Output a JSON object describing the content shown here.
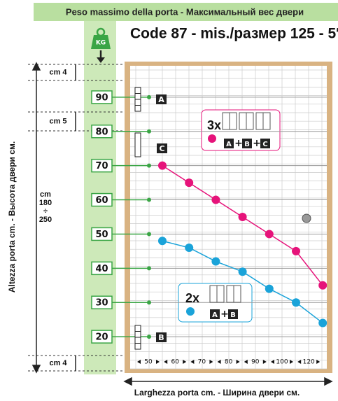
{
  "chart_data": {
    "type": "line",
    "subtitle": "Peso massimo della porta  -  Максимальный вес двери",
    "title": "Code 87 - mis./размер 125 - 5″",
    "icon": "KG",
    "ylabel": "Altezza porta cm.  -  Высота двери см.",
    "xlabel": "Larghezza porta cm.  -  Ширина двери см.",
    "height_label": [
      "cm",
      "180",
      "÷",
      "250"
    ],
    "dimension_labels": [
      "cm 4",
      "cm 5",
      "cm 4"
    ],
    "hinge_labels": [
      "A",
      "C",
      "B"
    ],
    "categories": [
      "50",
      "60",
      "70",
      "80",
      "90",
      "100",
      "120"
    ],
    "ylim": [
      10,
      100
    ],
    "yticks": [
      20,
      30,
      40,
      50,
      60,
      70,
      80,
      90
    ],
    "grid": true,
    "series": [
      {
        "name": "3x",
        "color": "#e6137a",
        "values": [
          70,
          65,
          60,
          55,
          50,
          45,
          35
        ],
        "hinges": [
          "A",
          "+",
          "B",
          "+",
          "C"
        ]
      },
      {
        "name": "2x",
        "color": "#1aa3d9",
        "values": [
          48,
          46,
          42,
          39,
          34,
          30,
          24
        ],
        "hinges": [
          "A",
          "+",
          "B"
        ]
      }
    ]
  }
}
